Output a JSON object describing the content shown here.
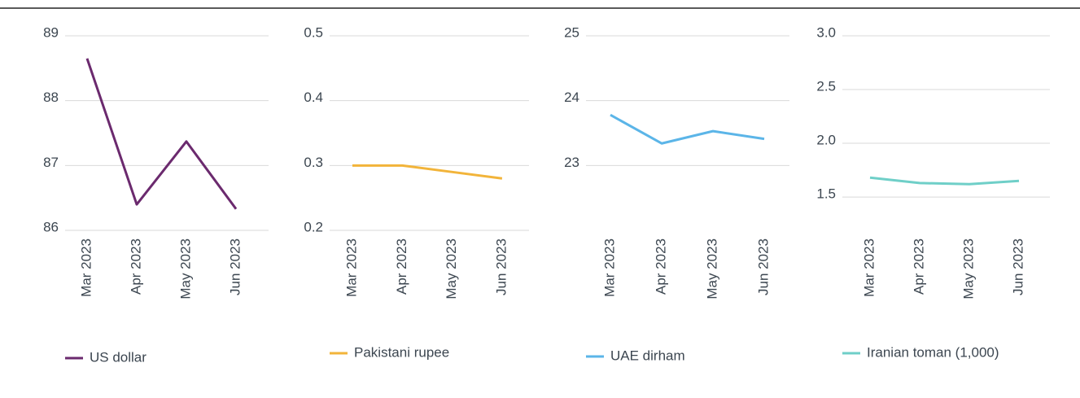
{
  "chart_data": [
    {
      "type": "line",
      "categories": [
        "Mar 2023",
        "Apr 2023",
        "May 2023",
        "Jun 2023"
      ],
      "series": [
        {
          "name": "US dollar",
          "color": "#6b2a6e",
          "values": [
            88.65,
            86.4,
            87.37,
            86.33
          ]
        }
      ],
      "ylim": [
        86,
        89
      ],
      "yticks": [
        86,
        87,
        88,
        89
      ]
    },
    {
      "type": "line",
      "categories": [
        "Mar 2023",
        "Apr 2023",
        "May 2023",
        "Jun 2023"
      ],
      "series": [
        {
          "name": "Pakistani rupee",
          "color": "#f2b43a",
          "values": [
            0.3,
            0.3,
            0.29,
            0.28
          ]
        }
      ],
      "ylim": [
        0.2,
        0.5
      ],
      "yticks": [
        0.2,
        0.3,
        0.4,
        0.5
      ]
    },
    {
      "type": "line",
      "categories": [
        "Mar 2023",
        "Apr 2023",
        "May 2023",
        "Jun 2023"
      ],
      "series": [
        {
          "name": "UAE dirham",
          "color": "#5bb5e8",
          "values": [
            23.78,
            23.34,
            23.53,
            23.41
          ]
        }
      ],
      "ylim": [
        22,
        25
      ],
      "yticks": [
        23,
        24,
        25
      ]
    },
    {
      "type": "line",
      "categories": [
        "Mar 2023",
        "Apr 2023",
        "May 2023",
        "Jun 2023"
      ],
      "series": [
        {
          "name": "Iranian toman (1,000)",
          "color": "#6fcfc8",
          "values": [
            1.68,
            1.63,
            1.62,
            1.65
          ]
        }
      ],
      "ylim": [
        1.19,
        3.0
      ],
      "yticks": [
        1.5,
        {
          "value": 2.0,
          "label": "2.0"
        },
        2.5,
        {
          "value": 3.0,
          "label": "3.0"
        }
      ]
    }
  ]
}
